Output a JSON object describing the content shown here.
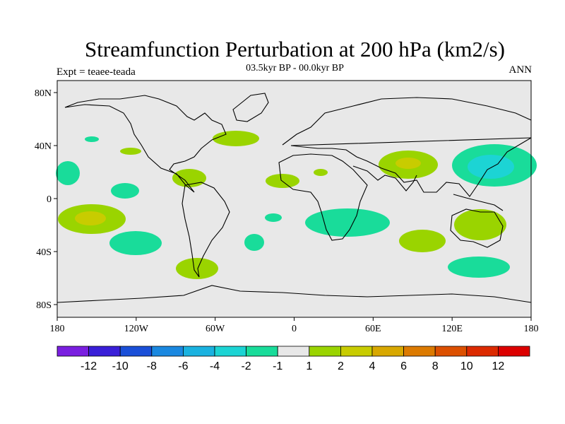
{
  "title": "Streamfunction Perturbation at 200 hPa (km2/s)",
  "subtitle": "03.5kyr BP - 00.0kyr BP",
  "left_note": "Expt = teaee-teada",
  "right_note": "ANN",
  "lat_ticks": [
    "80N",
    "40N",
    "0",
    "40S",
    "80S"
  ],
  "lon_ticks": [
    "180",
    "120W",
    "60W",
    "0",
    "60E",
    "120E",
    "180"
  ],
  "colorbar": {
    "colors": [
      "#7a1fe0",
      "#3a1fd8",
      "#1a4fd8",
      "#1a88e0",
      "#1ab2e0",
      "#1cd4d4",
      "#19dc9a",
      "#e8e8e8",
      "#9ad400",
      "#c8cc00",
      "#d8a800",
      "#dc7a00",
      "#dc5000",
      "#dc2a00",
      "#dc0000"
    ],
    "labels": [
      "-12",
      "-10",
      "-8",
      "-6",
      "-4",
      "-2",
      "-1",
      "1",
      "2",
      "4",
      "6",
      "8",
      "10",
      "12"
    ]
  },
  "colors": {
    "land_bg": "#e8e8e8",
    "coast": "#000000",
    "neg_light": "#19dc9a",
    "neg_mid": "#1cd4d4",
    "pos_light": "#9ad400",
    "pos_mid": "#c8cc00"
  }
}
